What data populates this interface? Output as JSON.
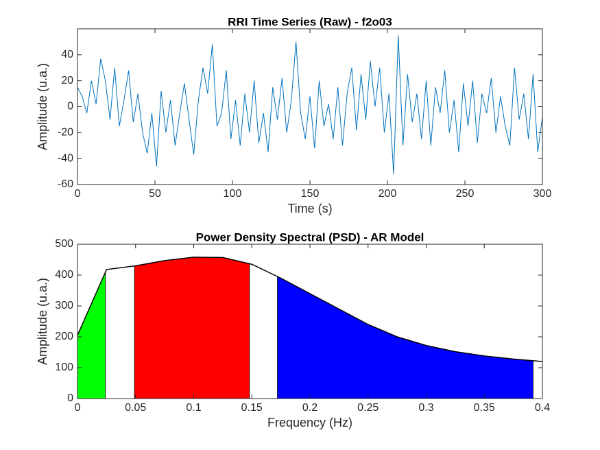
{
  "chart_data": [
    {
      "type": "line",
      "title": "RRI Time Series (Raw) - f2o03",
      "x_label": "Time (s)",
      "y_label": "Amplitude (u.a.)",
      "x": [
        0,
        3,
        6,
        9,
        12,
        15,
        18,
        21,
        24,
        27,
        30,
        33,
        36,
        39,
        42,
        45,
        48,
        51,
        54,
        57,
        60,
        63,
        66,
        69,
        72,
        75,
        78,
        81,
        84,
        87,
        90,
        93,
        96,
        99,
        102,
        105,
        108,
        111,
        114,
        117,
        120,
        123,
        126,
        129,
        132,
        135,
        138,
        141,
        144,
        147,
        150,
        153,
        156,
        159,
        162,
        165,
        168,
        171,
        174,
        177,
        180,
        183,
        186,
        189,
        192,
        195,
        198,
        201,
        204,
        207,
        210,
        213,
        216,
        219,
        222,
        225,
        228,
        231,
        234,
        237,
        240,
        243,
        246,
        249,
        252,
        255,
        258,
        261,
        264,
        267,
        270,
        273,
        276,
        279,
        282,
        285,
        288,
        291,
        294,
        297,
        300
      ],
      "series": [
        {
          "name": "RRI",
          "color": "#0072bd",
          "values": [
            15,
            8,
            -5,
            20,
            2,
            37,
            20,
            -10,
            30,
            -15,
            5,
            28,
            -12,
            10,
            -20,
            -36,
            -5,
            -46,
            12,
            -20,
            5,
            -30,
            -5,
            18,
            -10,
            -37,
            5,
            30,
            10,
            48,
            -15,
            -5,
            28,
            -25,
            5,
            -30,
            10,
            -20,
            20,
            -28,
            -5,
            -35,
            15,
            -10,
            22,
            -20,
            5,
            50,
            -5,
            -25,
            8,
            -32,
            20,
            -15,
            2,
            -25,
            15,
            -30,
            10,
            30,
            -18,
            25,
            -10,
            35,
            0,
            30,
            -20,
            10,
            -52,
            55,
            -30,
            25,
            -12,
            10,
            -25,
            20,
            -30,
            15,
            -5,
            28,
            -20,
            5,
            -35,
            18,
            -15,
            20,
            -28,
            10,
            -5,
            22,
            -20,
            8,
            -15,
            -30,
            30,
            -10,
            10,
            -25,
            25,
            -35,
            -8
          ]
        }
      ],
      "xlim": [
        0,
        300
      ],
      "xticks": [
        0,
        50,
        100,
        150,
        200,
        250,
        300
      ],
      "ylim": [
        -60,
        60
      ],
      "yticks": [
        -60,
        -40,
        -20,
        0,
        20,
        40
      ]
    },
    {
      "type": "area",
      "title": "Power Density Spectral (PSD) - AR Model",
      "x_label": "Frequency (Hz)",
      "y_label": "Amplitude (u.a.)",
      "x": [
        0,
        0.025,
        0.05,
        0.075,
        0.1,
        0.125,
        0.15,
        0.175,
        0.2,
        0.225,
        0.25,
        0.275,
        0.3,
        0.325,
        0.35,
        0.375,
        0.4
      ],
      "series": [
        {
          "name": "PSD",
          "color": "#000000",
          "values": [
            205,
            418,
            430,
            447,
            458,
            457,
            435,
            390,
            340,
            290,
            240,
            200,
            172,
            152,
            138,
            128,
            120
          ]
        }
      ],
      "bands": [
        {
          "color": "#00ff00",
          "range": [
            0,
            0.024
          ]
        },
        {
          "color": "#ff0000",
          "range": [
            0.049,
            0.148
          ]
        },
        {
          "color": "#0000ff",
          "range": [
            0.172,
            0.392
          ]
        }
      ],
      "xlim": [
        0,
        0.4
      ],
      "xticks": [
        0,
        0.05,
        0.1,
        0.15,
        0.2,
        0.25,
        0.3,
        0.35,
        0.4
      ],
      "ylim": [
        0,
        500
      ],
      "yticks": [
        0,
        100,
        200,
        300,
        400,
        500
      ]
    }
  ]
}
